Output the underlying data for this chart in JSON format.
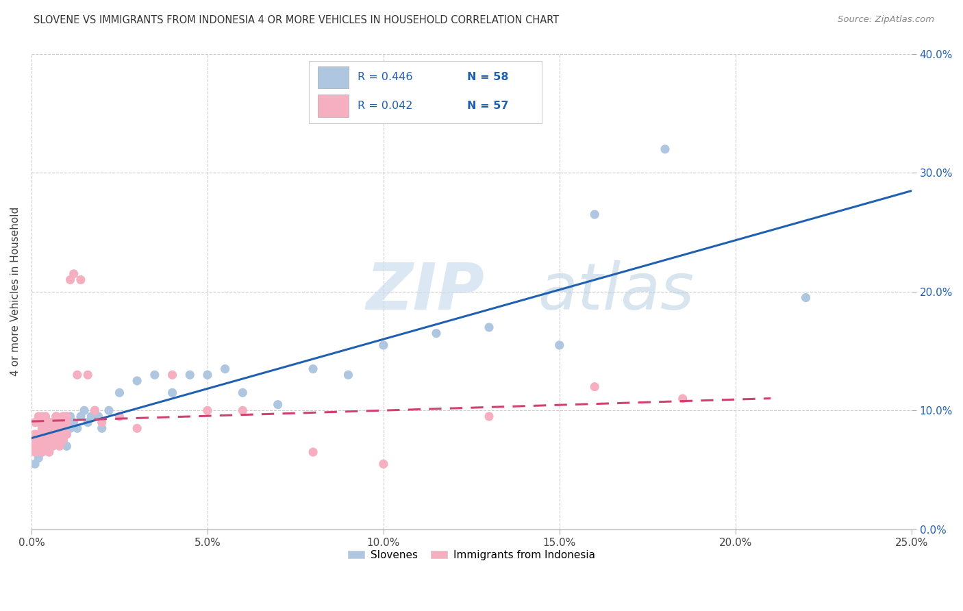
{
  "title": "SLOVENE VS IMMIGRANTS FROM INDONESIA 4 OR MORE VEHICLES IN HOUSEHOLD CORRELATION CHART",
  "source": "Source: ZipAtlas.com",
  "ylabel": "4 or more Vehicles in Household",
  "xlim": [
    0.0,
    0.25
  ],
  "ylim": [
    0.0,
    0.4
  ],
  "xticks": [
    0.0,
    0.05,
    0.1,
    0.15,
    0.2,
    0.25
  ],
  "yticks": [
    0.0,
    0.1,
    0.2,
    0.3,
    0.4
  ],
  "xtick_labels": [
    "0.0%",
    "5.0%",
    "10.0%",
    "15.0%",
    "20.0%",
    "25.0%"
  ],
  "ytick_labels_right": [
    "0.0%",
    "10.0%",
    "20.0%",
    "30.0%",
    "40.0%"
  ],
  "legend_labels": [
    "Slovenes",
    "Immigrants from Indonesia"
  ],
  "slovene_R": "0.446",
  "slovene_N": "58",
  "indonesia_R": "0.042",
  "indonesia_N": "57",
  "slovene_color": "#aec6e0",
  "slovene_line_color": "#2060b0",
  "indonesia_color": "#f5afc0",
  "indonesia_line_color": "#d04070",
  "text_color_blue": "#2060b0",
  "watermark_color": "#ccddef",
  "background_color": "#ffffff",
  "grid_color": "#cccccc",
  "slovene_x": [
    0.001,
    0.002,
    0.002,
    0.003,
    0.003,
    0.003,
    0.004,
    0.004,
    0.004,
    0.004,
    0.005,
    0.005,
    0.005,
    0.005,
    0.006,
    0.006,
    0.006,
    0.007,
    0.007,
    0.007,
    0.008,
    0.008,
    0.009,
    0.009,
    0.009,
    0.01,
    0.01,
    0.01,
    0.011,
    0.011,
    0.012,
    0.013,
    0.014,
    0.015,
    0.016,
    0.017,
    0.018,
    0.019,
    0.02,
    0.022,
    0.025,
    0.03,
    0.035,
    0.04,
    0.045,
    0.05,
    0.055,
    0.06,
    0.07,
    0.08,
    0.09,
    0.1,
    0.115,
    0.13,
    0.15,
    0.16,
    0.18,
    0.22
  ],
  "slovene_y": [
    0.055,
    0.06,
    0.07,
    0.065,
    0.075,
    0.08,
    0.07,
    0.075,
    0.085,
    0.09,
    0.065,
    0.075,
    0.085,
    0.09,
    0.07,
    0.08,
    0.09,
    0.075,
    0.085,
    0.095,
    0.08,
    0.09,
    0.075,
    0.085,
    0.095,
    0.07,
    0.08,
    0.09,
    0.085,
    0.095,
    0.09,
    0.085,
    0.095,
    0.1,
    0.09,
    0.095,
    0.1,
    0.095,
    0.085,
    0.1,
    0.115,
    0.125,
    0.13,
    0.115,
    0.13,
    0.13,
    0.135,
    0.115,
    0.105,
    0.135,
    0.13,
    0.155,
    0.165,
    0.17,
    0.155,
    0.265,
    0.32,
    0.195
  ],
  "indonesia_x": [
    0.001,
    0.001,
    0.001,
    0.001,
    0.001,
    0.002,
    0.002,
    0.002,
    0.002,
    0.002,
    0.003,
    0.003,
    0.003,
    0.003,
    0.003,
    0.004,
    0.004,
    0.004,
    0.004,
    0.005,
    0.005,
    0.005,
    0.005,
    0.005,
    0.005,
    0.006,
    0.006,
    0.006,
    0.007,
    0.007,
    0.007,
    0.008,
    0.008,
    0.008,
    0.009,
    0.009,
    0.009,
    0.01,
    0.01,
    0.01,
    0.011,
    0.012,
    0.013,
    0.014,
    0.016,
    0.018,
    0.02,
    0.025,
    0.03,
    0.04,
    0.05,
    0.06,
    0.08,
    0.1,
    0.13,
    0.16,
    0.185
  ],
  "indonesia_y": [
    0.065,
    0.07,
    0.075,
    0.08,
    0.09,
    0.07,
    0.075,
    0.08,
    0.09,
    0.095,
    0.065,
    0.075,
    0.08,
    0.085,
    0.095,
    0.07,
    0.08,
    0.09,
    0.095,
    0.065,
    0.07,
    0.075,
    0.08,
    0.085,
    0.09,
    0.07,
    0.08,
    0.09,
    0.075,
    0.085,
    0.095,
    0.07,
    0.08,
    0.09,
    0.075,
    0.085,
    0.095,
    0.08,
    0.09,
    0.095,
    0.21,
    0.215,
    0.13,
    0.21,
    0.13,
    0.1,
    0.09,
    0.095,
    0.085,
    0.13,
    0.1,
    0.1,
    0.065,
    0.055,
    0.095,
    0.12,
    0.11
  ]
}
